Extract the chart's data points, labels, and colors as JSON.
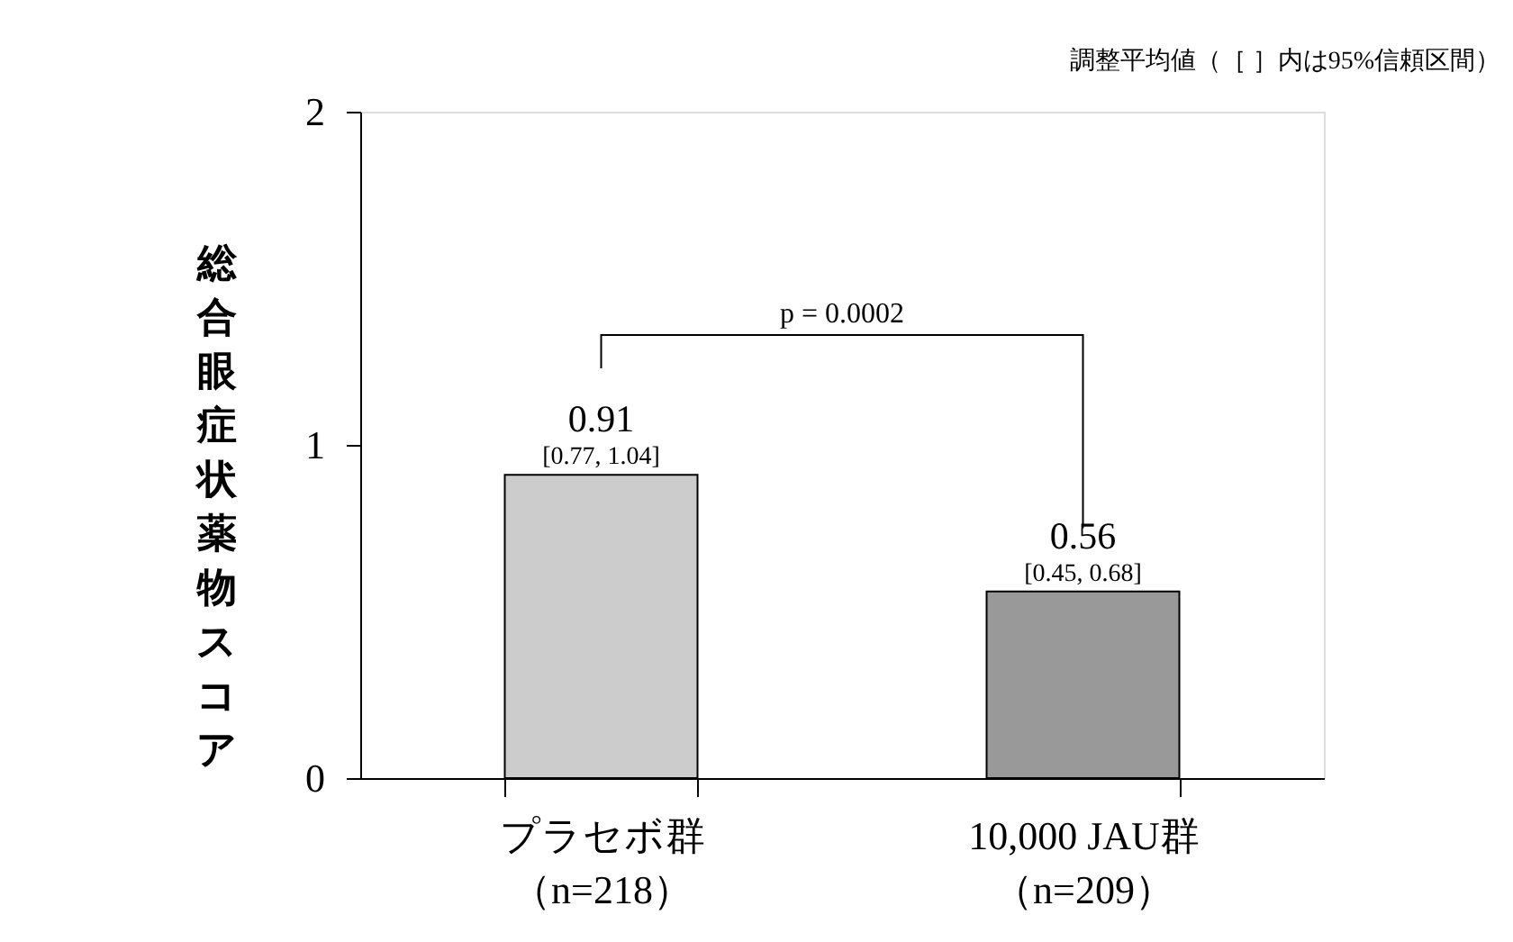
{
  "chart_data": {
    "type": "bar",
    "ylabel": "総合眼症状薬物スコア",
    "categories": [
      "プラセボ群（n=218）",
      "10,000 JAU群（n=209）"
    ],
    "values": [
      0.91,
      0.56
    ],
    "colors": [
      "#cccccc",
      "#999999"
    ],
    "ylim": [
      0,
      2
    ],
    "yticks": [
      0,
      1,
      2
    ],
    "grid": false,
    "legend": false,
    "data_labels": true,
    "annotations": [
      "調整平均値（［ ］内は95%信頼区間）",
      "p = 0.0002",
      {
        "text": "[0.77, 1.04]",
        "x": "プラセボ群（n=218）",
        "y": 0.91
      },
      {
        "text": "[0.45, 0.68]",
        "x": "10,000 JAU群（n=209）",
        "y": 0.56
      }
    ]
  }
}
